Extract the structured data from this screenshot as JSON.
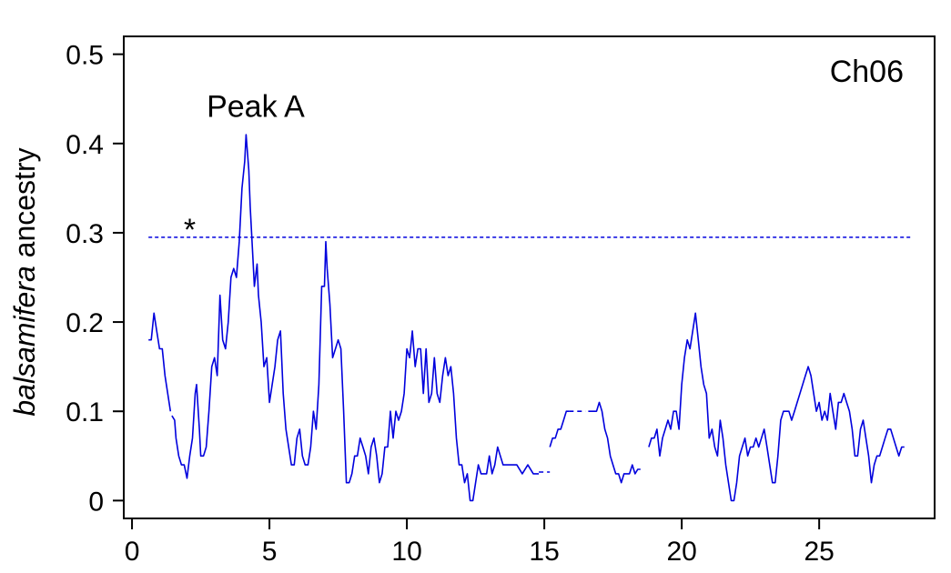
{
  "chart_data": {
    "type": "line",
    "title": "",
    "panel_label": "Ch06",
    "xlabel": "",
    "ylabel_italic": "balsamifera",
    "ylabel_rest": " ancestry",
    "xlim": [
      -0.3,
      29.2
    ],
    "ylim": [
      -0.02,
      0.52
    ],
    "x_ticks": [
      0,
      5,
      10,
      15,
      20,
      25
    ],
    "x_tick_labels": [
      "0",
      "5",
      "10",
      "15",
      "20",
      "25"
    ],
    "y_ticks": [
      0,
      0.1,
      0.2,
      0.3,
      0.4,
      0.5
    ],
    "y_tick_labels": [
      "0",
      "0.1",
      "0.2",
      "0.3",
      "0.4",
      "0.5"
    ],
    "grid": false,
    "line_color": "#0000dd",
    "threshold": {
      "y": 0.295,
      "x_start": 0.6,
      "x_end": 28.4,
      "marker": "*",
      "marker_x": 2.1,
      "marker_y": 0.304
    },
    "annotation": {
      "text": "Peak A",
      "x": 4.5,
      "y": 0.43
    },
    "series": [
      {
        "name": "",
        "segments": [
          [
            [
              0.6,
              0.18
            ],
            [
              0.7,
              0.18
            ],
            [
              0.8,
              0.21
            ],
            [
              0.9,
              0.19
            ],
            [
              1.0,
              0.17
            ],
            [
              1.1,
              0.17
            ],
            [
              1.2,
              0.14
            ],
            [
              1.3,
              0.12
            ],
            [
              1.4,
              0.1
            ]
          ],
          [
            [
              1.45,
              0.095
            ],
            [
              1.55,
              0.09
            ],
            [
              1.6,
              0.07
            ],
            [
              1.7,
              0.05
            ],
            [
              1.8,
              0.04
            ],
            [
              1.9,
              0.04
            ],
            [
              2.0,
              0.025
            ],
            [
              2.1,
              0.05
            ],
            [
              2.2,
              0.07
            ],
            [
              2.3,
              0.12
            ],
            [
              2.35,
              0.13
            ],
            [
              2.45,
              0.08
            ],
            [
              2.5,
              0.05
            ],
            [
              2.6,
              0.05
            ],
            [
              2.7,
              0.06
            ],
            [
              2.8,
              0.1
            ],
            [
              2.9,
              0.15
            ],
            [
              3.0,
              0.16
            ],
            [
              3.1,
              0.14
            ],
            [
              3.2,
              0.23
            ],
            [
              3.3,
              0.18
            ],
            [
              3.4,
              0.17
            ],
            [
              3.5,
              0.2
            ],
            [
              3.6,
              0.25
            ],
            [
              3.7,
              0.26
            ],
            [
              3.8,
              0.25
            ],
            [
              3.9,
              0.29
            ],
            [
              4.0,
              0.35
            ],
            [
              4.1,
              0.38
            ],
            [
              4.15,
              0.41
            ],
            [
              4.25,
              0.37
            ],
            [
              4.3,
              0.33
            ],
            [
              4.4,
              0.27
            ],
            [
              4.45,
              0.24
            ],
            [
              4.55,
              0.265
            ],
            [
              4.6,
              0.23
            ],
            [
              4.7,
              0.2
            ],
            [
              4.8,
              0.15
            ],
            [
              4.9,
              0.16
            ],
            [
              5.0,
              0.11
            ],
            [
              5.1,
              0.13
            ],
            [
              5.2,
              0.15
            ],
            [
              5.3,
              0.18
            ],
            [
              5.4,
              0.19
            ],
            [
              5.5,
              0.12
            ],
            [
              5.6,
              0.08
            ],
            [
              5.7,
              0.06
            ],
            [
              5.8,
              0.04
            ],
            [
              5.9,
              0.04
            ],
            [
              6.0,
              0.07
            ],
            [
              6.1,
              0.08
            ],
            [
              6.2,
              0.05
            ],
            [
              6.3,
              0.04
            ],
            [
              6.4,
              0.04
            ],
            [
              6.5,
              0.06
            ],
            [
              6.6,
              0.1
            ],
            [
              6.7,
              0.08
            ],
            [
              6.8,
              0.13
            ],
            [
              6.9,
              0.24
            ],
            [
              7.0,
              0.24
            ],
            [
              7.05,
              0.29
            ],
            [
              7.1,
              0.26
            ],
            [
              7.2,
              0.22
            ],
            [
              7.3,
              0.16
            ],
            [
              7.4,
              0.17
            ],
            [
              7.5,
              0.18
            ],
            [
              7.6,
              0.17
            ],
            [
              7.7,
              0.1
            ],
            [
              7.8,
              0.02
            ],
            [
              7.9,
              0.02
            ],
            [
              8.0,
              0.03
            ],
            [
              8.1,
              0.05
            ],
            [
              8.2,
              0.05
            ],
            [
              8.3,
              0.07
            ],
            [
              8.4,
              0.06
            ],
            [
              8.5,
              0.05
            ],
            [
              8.6,
              0.03
            ],
            [
              8.7,
              0.06
            ],
            [
              8.8,
              0.07
            ],
            [
              8.9,
              0.05
            ],
            [
              9.0,
              0.02
            ],
            [
              9.1,
              0.03
            ],
            [
              9.2,
              0.06
            ],
            [
              9.3,
              0.06
            ],
            [
              9.4,
              0.1
            ],
            [
              9.5,
              0.07
            ],
            [
              9.6,
              0.1
            ],
            [
              9.7,
              0.09
            ],
            [
              9.8,
              0.1
            ],
            [
              9.9,
              0.12
            ],
            [
              10.0,
              0.17
            ],
            [
              10.1,
              0.16
            ],
            [
              10.2,
              0.19
            ],
            [
              10.3,
              0.15
            ],
            [
              10.4,
              0.17
            ],
            [
              10.5,
              0.17
            ],
            [
              10.6,
              0.12
            ],
            [
              10.7,
              0.17
            ],
            [
              10.8,
              0.11
            ],
            [
              10.9,
              0.12
            ],
            [
              11.0,
              0.16
            ],
            [
              11.1,
              0.12
            ],
            [
              11.2,
              0.11
            ],
            [
              11.3,
              0.14
            ],
            [
              11.4,
              0.16
            ],
            [
              11.5,
              0.14
            ],
            [
              11.6,
              0.15
            ],
            [
              11.7,
              0.12
            ],
            [
              11.8,
              0.07
            ],
            [
              11.9,
              0.04
            ],
            [
              12.0,
              0.04
            ],
            [
              12.1,
              0.02
            ],
            [
              12.2,
              0.03
            ],
            [
              12.3,
              0.0
            ],
            [
              12.4,
              0.0
            ],
            [
              12.5,
              0.02
            ],
            [
              12.6,
              0.04
            ],
            [
              12.7,
              0.03
            ],
            [
              12.8,
              0.03
            ],
            [
              12.9,
              0.03
            ],
            [
              13.0,
              0.05
            ],
            [
              13.1,
              0.03
            ],
            [
              13.2,
              0.04
            ],
            [
              13.3,
              0.06
            ],
            [
              13.4,
              0.05
            ],
            [
              13.5,
              0.04
            ],
            [
              13.6,
              0.04
            ],
            [
              13.8,
              0.04
            ],
            [
              14.0,
              0.04
            ],
            [
              14.2,
              0.03
            ],
            [
              14.4,
              0.04
            ],
            [
              14.6,
              0.03
            ],
            [
              14.8,
              0.03
            ]
          ],
          [
            [
              14.8,
              0.032
            ],
            [
              15.2,
              0.032
            ]
          ],
          [
            [
              15.2,
              0.06
            ],
            [
              15.3,
              0.07
            ],
            [
              15.4,
              0.07
            ],
            [
              15.5,
              0.08
            ],
            [
              15.6,
              0.08
            ],
            [
              15.7,
              0.09
            ],
            [
              15.8,
              0.1
            ],
            [
              15.9,
              0.1
            ]
          ],
          [
            [
              15.9,
              0.1
            ],
            [
              16.5,
              0.1
            ]
          ],
          [
            [
              16.6,
              0.1
            ],
            [
              16.7,
              0.1
            ],
            [
              16.8,
              0.1
            ],
            [
              16.9,
              0.1
            ],
            [
              17.0,
              0.11
            ],
            [
              17.1,
              0.1
            ],
            [
              17.2,
              0.08
            ],
            [
              17.3,
              0.07
            ],
            [
              17.4,
              0.05
            ],
            [
              17.5,
              0.04
            ],
            [
              17.6,
              0.03
            ],
            [
              17.7,
              0.03
            ],
            [
              17.8,
              0.02
            ],
            [
              17.9,
              0.03
            ],
            [
              18.0,
              0.03
            ],
            [
              18.1,
              0.03
            ],
            [
              18.2,
              0.04
            ],
            [
              18.3,
              0.03
            ],
            [
              18.4,
              0.035
            ],
            [
              18.5,
              0.035
            ]
          ],
          [
            [
              18.8,
              0.06
            ],
            [
              18.9,
              0.07
            ],
            [
              19.0,
              0.07
            ],
            [
              19.1,
              0.08
            ],
            [
              19.2,
              0.05
            ],
            [
              19.3,
              0.07
            ],
            [
              19.4,
              0.08
            ],
            [
              19.5,
              0.09
            ],
            [
              19.6,
              0.08
            ],
            [
              19.7,
              0.1
            ],
            [
              19.8,
              0.1
            ],
            [
              19.9,
              0.08
            ],
            [
              20.0,
              0.13
            ],
            [
              20.1,
              0.16
            ],
            [
              20.2,
              0.18
            ],
            [
              20.3,
              0.17
            ],
            [
              20.4,
              0.19
            ],
            [
              20.5,
              0.21
            ],
            [
              20.6,
              0.18
            ],
            [
              20.7,
              0.15
            ],
            [
              20.8,
              0.13
            ],
            [
              20.9,
              0.12
            ],
            [
              21.0,
              0.07
            ],
            [
              21.1,
              0.08
            ],
            [
              21.2,
              0.06
            ],
            [
              21.3,
              0.05
            ],
            [
              21.4,
              0.09
            ],
            [
              21.5,
              0.07
            ],
            [
              21.6,
              0.04
            ],
            [
              21.7,
              0.02
            ],
            [
              21.8,
              0.0
            ],
            [
              21.9,
              0.0
            ],
            [
              22.0,
              0.02
            ],
            [
              22.1,
              0.05
            ],
            [
              22.2,
              0.06
            ],
            [
              22.3,
              0.07
            ],
            [
              22.4,
              0.05
            ],
            [
              22.5,
              0.06
            ],
            [
              22.6,
              0.06
            ],
            [
              22.7,
              0.07
            ],
            [
              22.8,
              0.06
            ],
            [
              22.9,
              0.07
            ],
            [
              23.0,
              0.08
            ],
            [
              23.1,
              0.06
            ],
            [
              23.2,
              0.04
            ],
            [
              23.3,
              0.02
            ],
            [
              23.4,
              0.02
            ],
            [
              23.5,
              0.05
            ],
            [
              23.6,
              0.09
            ],
            [
              23.7,
              0.1
            ],
            [
              23.8,
              0.1
            ],
            [
              23.9,
              0.1
            ],
            [
              24.0,
              0.09
            ],
            [
              24.1,
              0.1
            ],
            [
              24.2,
              0.11
            ],
            [
              24.3,
              0.12
            ],
            [
              24.4,
              0.13
            ],
            [
              24.5,
              0.14
            ],
            [
              24.6,
              0.15
            ],
            [
              24.7,
              0.14
            ],
            [
              24.8,
              0.12
            ],
            [
              24.9,
              0.1
            ],
            [
              25.0,
              0.11
            ],
            [
              25.1,
              0.09
            ],
            [
              25.2,
              0.1
            ],
            [
              25.3,
              0.09
            ],
            [
              25.4,
              0.12
            ],
            [
              25.5,
              0.1
            ],
            [
              25.6,
              0.08
            ],
            [
              25.7,
              0.11
            ],
            [
              25.8,
              0.11
            ],
            [
              25.9,
              0.12
            ],
            [
              26.0,
              0.11
            ],
            [
              26.1,
              0.1
            ],
            [
              26.2,
              0.08
            ],
            [
              26.3,
              0.05
            ],
            [
              26.4,
              0.05
            ],
            [
              26.5,
              0.08
            ],
            [
              26.6,
              0.09
            ],
            [
              26.7,
              0.07
            ],
            [
              26.8,
              0.05
            ],
            [
              26.9,
              0.02
            ],
            [
              27.0,
              0.04
            ],
            [
              27.1,
              0.05
            ],
            [
              27.2,
              0.05
            ],
            [
              27.3,
              0.06
            ],
            [
              27.4,
              0.07
            ],
            [
              27.5,
              0.08
            ],
            [
              27.6,
              0.08
            ],
            [
              27.7,
              0.07
            ],
            [
              27.8,
              0.06
            ],
            [
              27.9,
              0.05
            ],
            [
              28.0,
              0.06
            ],
            [
              28.1,
              0.06
            ]
          ]
        ]
      }
    ]
  }
}
